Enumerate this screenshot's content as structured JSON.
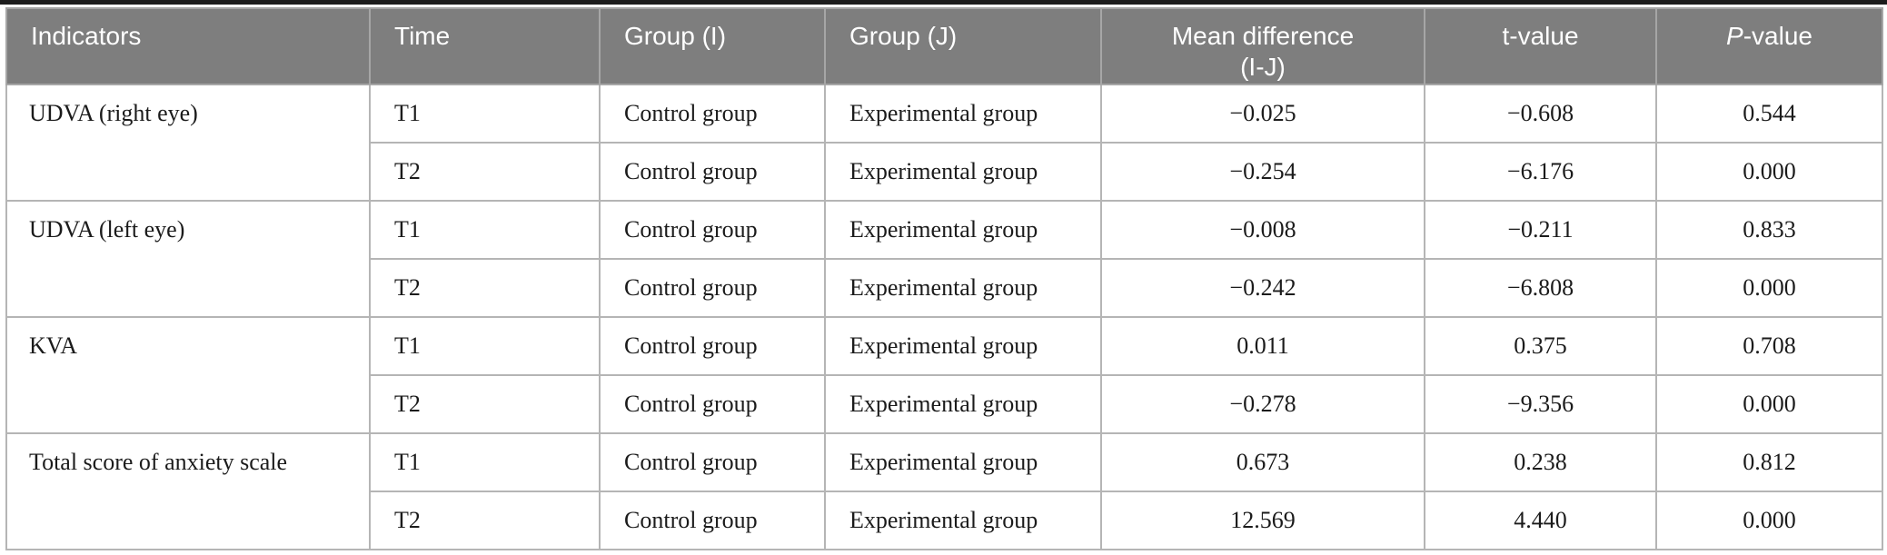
{
  "page": {
    "top_rule_color": "#1c1c1c",
    "background": "#ffffff"
  },
  "table": {
    "header_bg": "#7e7e7e",
    "header_text_color": "#ffffff",
    "border_color": "#b5b5b5",
    "columns": {
      "indicators": {
        "label": "Indicators"
      },
      "time": {
        "label": "Time"
      },
      "group_i": {
        "label": "Group (I)"
      },
      "group_j": {
        "label": "Group (J)"
      },
      "mean_diff": {
        "label": "Mean difference (I-J)",
        "line1": "Mean difference",
        "line2": "(I-J)"
      },
      "t_value": {
        "label": "t-value"
      },
      "p_value": {
        "label": "P-value",
        "italic_part": "P",
        "rest_part": "-value"
      }
    },
    "groups": [
      {
        "indicator": "UDVA (right eye)",
        "rows": [
          {
            "time": "T1",
            "group_i": "Control group",
            "group_j": "Experimental group",
            "mean_diff": "−0.025",
            "t_value": "−0.608",
            "p_value": "0.544"
          },
          {
            "time": "T2",
            "group_i": "Control group",
            "group_j": "Experimental group",
            "mean_diff": "−0.254",
            "t_value": "−6.176",
            "p_value": "0.000"
          }
        ]
      },
      {
        "indicator": "UDVA (left eye)",
        "rows": [
          {
            "time": "T1",
            "group_i": "Control group",
            "group_j": "Experimental group",
            "mean_diff": "−0.008",
            "t_value": "−0.211",
            "p_value": "0.833"
          },
          {
            "time": "T2",
            "group_i": "Control group",
            "group_j": "Experimental group",
            "mean_diff": "−0.242",
            "t_value": "−6.808",
            "p_value": "0.000"
          }
        ]
      },
      {
        "indicator": "KVA",
        "rows": [
          {
            "time": "T1",
            "group_i": "Control group",
            "group_j": "Experimental group",
            "mean_diff": "0.011",
            "t_value": "0.375",
            "p_value": "0.708"
          },
          {
            "time": "T2",
            "group_i": "Control group",
            "group_j": "Experimental group",
            "mean_diff": "−0.278",
            "t_value": "−9.356",
            "p_value": "0.000"
          }
        ]
      },
      {
        "indicator": "Total score of anxiety scale",
        "rows": [
          {
            "time": "T1",
            "group_i": "Control group",
            "group_j": "Experimental group",
            "mean_diff": "0.673",
            "t_value": "0.238",
            "p_value": "0.812"
          },
          {
            "time": "T2",
            "group_i": "Control group",
            "group_j": "Experimental group",
            "mean_diff": "12.569",
            "t_value": "4.440",
            "p_value": "0.000"
          }
        ]
      }
    ]
  }
}
